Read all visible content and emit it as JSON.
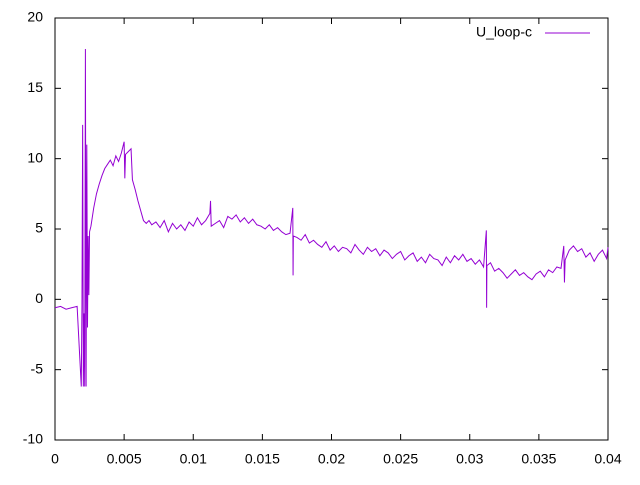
{
  "chart_data": {
    "type": "line",
    "xlim": [
      0,
      0.04
    ],
    "ylim": [
      -10,
      20
    ],
    "xticks": [
      0,
      0.005,
      0.01,
      0.015,
      0.02,
      0.025,
      0.03,
      0.035,
      0.04
    ],
    "yticks": [
      -10,
      -5,
      0,
      5,
      10,
      15,
      20
    ],
    "legend": "top-right",
    "x": [
      0,
      0.0004,
      0.0008,
      0.0012,
      0.0016,
      0.0019,
      0.00195,
      0.002,
      0.00205,
      0.0021,
      0.00215,
      0.0022,
      0.00225,
      0.0023,
      0.00235,
      0.0024,
      0.00245,
      0.0025,
      0.0026,
      0.0028,
      0.003,
      0.0032,
      0.0034,
      0.0036,
      0.0038,
      0.004,
      0.0042,
      0.0044,
      0.0046,
      0.0048,
      0.005,
      0.00505,
      0.0051,
      0.0053,
      0.0055,
      0.0056,
      0.0058,
      0.006,
      0.0062,
      0.0064,
      0.0066,
      0.0068,
      0.007,
      0.0073,
      0.0076,
      0.0079,
      0.0082,
      0.0085,
      0.0088,
      0.0091,
      0.0094,
      0.0097,
      0.01,
      0.0103,
      0.0106,
      0.0109,
      0.0112,
      0.01125,
      0.0113,
      0.0116,
      0.0119,
      0.0122,
      0.0125,
      0.0128,
      0.0131,
      0.0134,
      0.0137,
      0.014,
      0.0143,
      0.0146,
      0.0149,
      0.0152,
      0.0155,
      0.0158,
      0.0161,
      0.0164,
      0.0167,
      0.017,
      0.0172,
      0.01722,
      0.01724,
      0.0175,
      0.0178,
      0.0181,
      0.0184,
      0.0187,
      0.019,
      0.0193,
      0.0196,
      0.0199,
      0.0202,
      0.0205,
      0.0208,
      0.0211,
      0.0214,
      0.0217,
      0.022,
      0.0223,
      0.0226,
      0.0229,
      0.0232,
      0.0235,
      0.0238,
      0.0241,
      0.0244,
      0.0247,
      0.025,
      0.0253,
      0.0256,
      0.0259,
      0.0262,
      0.0265,
      0.0268,
      0.0271,
      0.0274,
      0.0277,
      0.028,
      0.0283,
      0.0286,
      0.0289,
      0.0292,
      0.0295,
      0.0298,
      0.0301,
      0.0304,
      0.0307,
      0.031,
      0.0312,
      0.03122,
      0.03124,
      0.0315,
      0.0318,
      0.0321,
      0.0324,
      0.0327,
      0.033,
      0.0333,
      0.0336,
      0.0339,
      0.0342,
      0.0345,
      0.0348,
      0.0351,
      0.0354,
      0.0357,
      0.036,
      0.0363,
      0.0366,
      0.0368,
      0.03685,
      0.0369,
      0.0372,
      0.0375,
      0.0378,
      0.0381,
      0.0384,
      0.0387,
      0.039,
      0.0393,
      0.0396,
      0.0399,
      0.04
    ],
    "series": [
      {
        "name": "U_loop-c",
        "color": "#9400d3",
        "values": [
          -0.6,
          -0.5,
          -0.7,
          -0.6,
          -0.5,
          -6.2,
          -0.5,
          12.4,
          -6.2,
          -1,
          -6.2,
          17.8,
          -6.2,
          11,
          -2,
          4.5,
          0.3,
          4.8,
          5.2,
          6.5,
          7.5,
          8.2,
          8.8,
          9.3,
          9.6,
          9.9,
          9.5,
          10.2,
          9.8,
          10.4,
          11.2,
          8.6,
          10.3,
          10.5,
          10.7,
          8.5,
          7.8,
          7,
          6.3,
          5.6,
          5.4,
          5.6,
          5.3,
          5.5,
          5.1,
          5.6,
          4.8,
          5.4,
          5.0,
          5.3,
          4.9,
          5.5,
          5.2,
          5.8,
          5.3,
          5.6,
          6.1,
          7,
          5.2,
          5.4,
          5.6,
          5.1,
          5.9,
          5.7,
          6.0,
          5.5,
          5.8,
          5.4,
          5.7,
          5.3,
          5.2,
          5.0,
          5.3,
          4.9,
          5.1,
          4.8,
          4.6,
          4.7,
          6.5,
          1.7,
          4.5,
          4.4,
          4.2,
          4.6,
          4.0,
          4.2,
          3.9,
          3.7,
          4.1,
          3.5,
          3.8,
          3.4,
          3.7,
          3.6,
          3.3,
          3.9,
          3.5,
          3.2,
          3.7,
          3.4,
          3.6,
          3.1,
          3.5,
          3.3,
          2.9,
          3.2,
          3.4,
          2.8,
          3.1,
          3.3,
          2.7,
          3.0,
          2.6,
          3.2,
          2.9,
          2.8,
          2.4,
          3.0,
          2.6,
          3.1,
          2.8,
          3.2,
          2.7,
          2.9,
          2.5,
          2.8,
          2.3,
          4.9,
          -0.6,
          2.4,
          2.6,
          2.0,
          2.2,
          1.9,
          1.5,
          1.8,
          2.1,
          1.7,
          1.9,
          1.6,
          1.4,
          1.8,
          2.0,
          1.6,
          2.1,
          1.9,
          2.3,
          2.2,
          3.8,
          1.2,
          2.8,
          3.5,
          3.8,
          3.4,
          3.6,
          3.0,
          3.3,
          2.7,
          3.2,
          3.5,
          2.9,
          3.7
        ]
      }
    ]
  }
}
